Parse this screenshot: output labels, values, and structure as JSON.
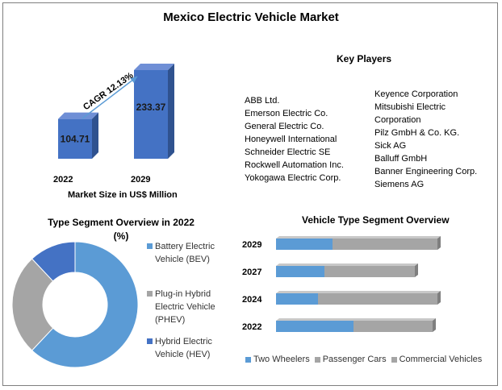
{
  "title": "Mexico Electric Vehicle Market",
  "market_size": {
    "caption": "Market Size in US$ Million",
    "cagr_label": "CAGR 12.13%",
    "color": "#4472C4"
  },
  "key_players": {
    "title": "Key Players",
    "column1": [
      "ABB Ltd.",
      "Emerson Electric Co.",
      "General Electric Co.",
      "Honeywell International",
      "Schneider Electric SE",
      "Rockwell Automation Inc.",
      "Yokogawa Electric Corp."
    ],
    "column2": [
      "Keyence Corporation",
      "Mitsubishi Electric",
      "Corporation",
      "Pilz GmbH & Co. KG.",
      "Sick AG",
      "Balluff GmbH",
      "Banner Engineering Corp.",
      "Siemens AG"
    ]
  },
  "donut": {
    "title": "Type Segment Overview in 2022",
    "subtitle": "(%)",
    "legend": [
      {
        "label": "Battery Electric Vehicle (BEV)",
        "color": "#5B9BD5"
      },
      {
        "label": "Plug-in Hybrid Electric Vehicle (PHEV)",
        "color": "#A5A5A5"
      },
      {
        "label": "Hybrid Electric Vehicle (HEV)",
        "color": "#4472C4"
      }
    ]
  },
  "hbar": {
    "title": "Vehicle  Type Segment Overview",
    "legend": [
      {
        "label": "Two Wheelers",
        "color": "#5B9BD5"
      },
      {
        "label": "Passenger Cars",
        "color": "#A5A5A5"
      },
      {
        "label": "Commercial Vehicles",
        "color": "#A5A5A5"
      }
    ]
  },
  "chart_data": [
    {
      "type": "bar",
      "categories": [
        "2022",
        "2029"
      ],
      "values": [
        104.71,
        233.37
      ],
      "xlabel": "Market Size in US$ Million",
      "annotation": "CAGR 12.13%"
    },
    {
      "type": "pie",
      "title": "Type Segment Overview in 2022 (%)",
      "labels": [
        "Battery Electric Vehicle (BEV)",
        "Plug-in Hybrid Electric Vehicle (PHEV)",
        "Hybrid Electric Vehicle (HEV)"
      ],
      "values": [
        62,
        26,
        12
      ]
    },
    {
      "type": "bar",
      "orientation": "horizontal",
      "stacked": true,
      "title": "Vehicle  Type Segment Overview",
      "categories": [
        "2029",
        "2027",
        "2024",
        "2022"
      ],
      "series": [
        {
          "name": "Two Wheelers",
          "values": [
            35,
            30,
            26,
            48
          ]
        },
        {
          "name": "Passenger Cars",
          "values": [
            65,
            56,
            74,
            49
          ]
        },
        {
          "name": "Commercial Vehicles",
          "values": [
            0,
            0,
            0,
            0
          ]
        }
      ]
    }
  ]
}
